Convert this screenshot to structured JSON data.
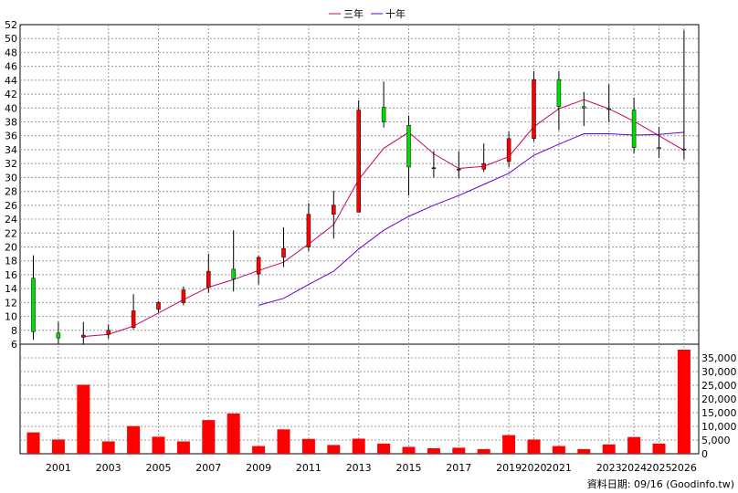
{
  "legend": {
    "three_year": "三年",
    "ten_year": "十年"
  },
  "source_label": "資料日期: 09/16 (Goodinfo.tw)",
  "colors": {
    "up": "#ff0000",
    "down": "#00dd00",
    "three_year_line": "#cc0066",
    "ten_year_line": "#6600cc",
    "volume": "#ff0000",
    "grid": "#999999"
  },
  "chart_data": [
    {
      "type": "candlestick",
      "title": "",
      "x_tick_labels": [
        "2001",
        "2003",
        "2005",
        "2007",
        "2009",
        "2011",
        "2013",
        "2015",
        "2017",
        "2019",
        "2020",
        "2021",
        "2023",
        "2024",
        "2025",
        "2026"
      ],
      "ylim": [
        6,
        52
      ],
      "y_ticks": [
        6,
        8,
        10,
        12,
        14,
        16,
        18,
        20,
        22,
        24,
        26,
        28,
        30,
        32,
        34,
        36,
        38,
        40,
        42,
        44,
        46,
        48,
        50,
        52
      ],
      "grid": true,
      "legend_position": "top-center",
      "years": [
        2000,
        2001,
        2002,
        2003,
        2004,
        2005,
        2006,
        2007,
        2008,
        2009,
        2010,
        2011,
        2012,
        2013,
        2014,
        2015,
        2016,
        2017,
        2018,
        2019,
        2020,
        2021,
        2022,
        2023,
        2024,
        2025,
        2026
      ],
      "candles": [
        {
          "year": 2000,
          "open": 15.5,
          "close": 7.8,
          "high": 18.8,
          "low": 6.6
        },
        {
          "year": 2001,
          "open": 7.6,
          "close": 6.9,
          "high": 9.2,
          "low": 6.0
        },
        {
          "year": 2002,
          "open": 7.0,
          "close": 7.3,
          "high": 9.2,
          "low": 6.0
        },
        {
          "year": 2003,
          "open": 7.4,
          "close": 8.0,
          "high": 8.8,
          "low": 6.8
        },
        {
          "year": 2004,
          "open": 8.4,
          "close": 10.8,
          "high": 13.2,
          "low": 8.1
        },
        {
          "year": 2005,
          "open": 11.0,
          "close": 12.0,
          "high": 12.2,
          "low": 10.6
        },
        {
          "year": 2006,
          "open": 12.0,
          "close": 13.8,
          "high": 14.3,
          "low": 11.6
        },
        {
          "year": 2007,
          "open": 14.2,
          "close": 16.5,
          "high": 19.0,
          "low": 13.4
        },
        {
          "year": 2008,
          "open": 16.8,
          "close": 15.4,
          "high": 22.4,
          "low": 13.6
        },
        {
          "year": 2009,
          "open": 16.1,
          "close": 18.5,
          "high": 18.7,
          "low": 14.6
        },
        {
          "year": 2010,
          "open": 18.5,
          "close": 19.8,
          "high": 22.8,
          "low": 17.1
        },
        {
          "year": 2011,
          "open": 20.0,
          "close": 24.7,
          "high": 26.3,
          "low": 19.4
        },
        {
          "year": 2012,
          "open": 24.7,
          "close": 26.0,
          "high": 28.1,
          "low": 21.2
        },
        {
          "year": 2013,
          "open": 25.0,
          "close": 39.7,
          "high": 41.1,
          "low": 25.0
        },
        {
          "year": 2014,
          "open": 40.1,
          "close": 38.0,
          "high": 43.8,
          "low": 37.2
        },
        {
          "year": 2015,
          "open": 37.5,
          "close": 31.5,
          "high": 38.9,
          "low": 27.4
        },
        {
          "year": 2016,
          "open": 31.4,
          "close": 31.4,
          "high": 33.8,
          "low": 30.0
        },
        {
          "year": 2017,
          "open": 31.2,
          "close": 31.2,
          "high": 33.8,
          "low": 29.9
        },
        {
          "year": 2018,
          "open": 31.2,
          "close": 32.0,
          "high": 34.9,
          "low": 30.8
        },
        {
          "year": 2019,
          "open": 32.3,
          "close": 35.6,
          "high": 36.6,
          "low": 31.5
        },
        {
          "year": 2020,
          "open": 35.6,
          "close": 44.1,
          "high": 45.3,
          "low": 35.2
        },
        {
          "year": 2021,
          "open": 44.1,
          "close": 40.2,
          "high": 45.3,
          "low": 36.8
        },
        {
          "year": 2022,
          "open": 40.2,
          "close": 40.0,
          "high": 42.3,
          "low": 37.4
        },
        {
          "year": 2023,
          "open": 39.9,
          "close": 39.8,
          "high": 43.4,
          "low": 38.0
        },
        {
          "year": 2024,
          "open": 39.7,
          "close": 34.3,
          "high": 41.5,
          "low": 33.5
        },
        {
          "year": 2025,
          "open": 34.3,
          "close": 34.2,
          "high": 37.3,
          "low": 32.8
        },
        {
          "year": 2026,
          "open": 34.0,
          "close": 34.1,
          "high": 51.2,
          "low": 32.6
        }
      ],
      "series": [
        {
          "name": "三年",
          "x": [
            2002,
            2003,
            2004,
            2005,
            2006,
            2007,
            2008,
            2009,
            2010,
            2011,
            2012,
            2013,
            2014,
            2015,
            2016,
            2017,
            2018,
            2019,
            2020,
            2021,
            2022,
            2023,
            2024,
            2025,
            2026
          ],
          "values": [
            7.1,
            7.4,
            8.6,
            10.5,
            12.4,
            14.2,
            15.3,
            16.6,
            17.8,
            20.4,
            23.2,
            29.7,
            34.2,
            36.5,
            33.4,
            31.3,
            31.6,
            33.0,
            37.3,
            39.9,
            41.2,
            39.9,
            38.1,
            36.0,
            33.9
          ]
        },
        {
          "name": "十年",
          "x": [
            2009,
            2010,
            2011,
            2012,
            2013,
            2014,
            2015,
            2016,
            2017,
            2018,
            2019,
            2020,
            2021,
            2022,
            2023,
            2024,
            2025,
            2026
          ],
          "values": [
            11.6,
            12.6,
            14.6,
            16.5,
            19.7,
            22.4,
            24.4,
            26.0,
            27.4,
            29.0,
            30.6,
            33.2,
            34.8,
            36.3,
            36.3,
            36.1,
            36.2,
            36.5
          ]
        }
      ]
    },
    {
      "type": "bar",
      "title": "",
      "ylim": [
        0,
        40000
      ],
      "y_tick_labels": [
        "0",
        "5,000",
        "10,000",
        "15,000",
        "20,000",
        "25,000",
        "30,000",
        "35,000"
      ],
      "y_ticks": [
        0,
        5000,
        10000,
        15000,
        20000,
        25000,
        30000,
        35000
      ],
      "categories": [
        2000,
        2001,
        2002,
        2003,
        2004,
        2005,
        2006,
        2007,
        2008,
        2009,
        2010,
        2011,
        2012,
        2013,
        2014,
        2015,
        2016,
        2017,
        2018,
        2019,
        2020,
        2021,
        2022,
        2023,
        2024,
        2025,
        2026
      ],
      "values": [
        7800,
        5200,
        25200,
        4500,
        10100,
        6200,
        4500,
        12300,
        14700,
        2800,
        8900,
        5400,
        3200,
        5500,
        3700,
        2500,
        2000,
        2200,
        1700,
        6800,
        5200,
        2800,
        1700,
        3400,
        6100,
        3700,
        38000
      ]
    }
  ]
}
